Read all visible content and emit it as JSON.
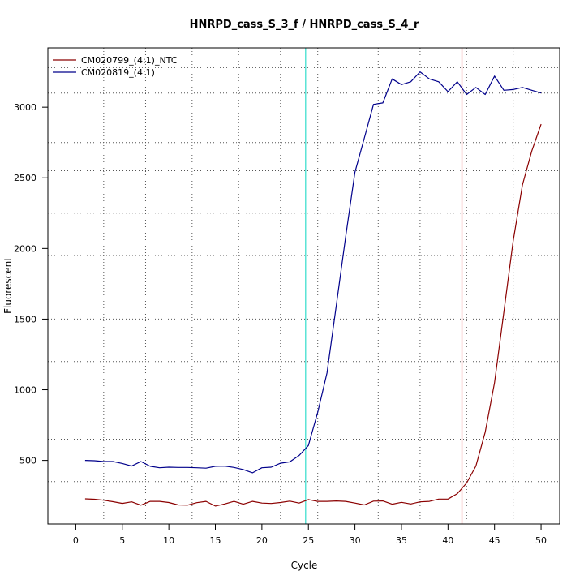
{
  "chart_data": {
    "type": "line",
    "title": "HNRPD_cass_S_3_f / HNRPD_cass_S_4_r",
    "xlabel": "Cycle",
    "ylabel": "Fluorescent",
    "xlim": [
      -3,
      52
    ],
    "ylim": [
      50,
      3420
    ],
    "x_ticks": [
      0,
      5,
      10,
      15,
      20,
      25,
      30,
      35,
      40,
      45,
      50
    ],
    "y_ticks": [
      500,
      1000,
      1500,
      2000,
      2500,
      3000
    ],
    "x_grid": [
      3,
      7.5,
      12.5,
      17.5,
      22,
      26,
      32.5,
      37,
      42,
      47
    ],
    "y_grid": [
      350,
      650,
      1200,
      1500,
      1950,
      2250,
      2550,
      2750,
      3100,
      3280
    ],
    "grid": true,
    "legend_position": "top-left",
    "threshold_lines": [
      {
        "x": 24.7,
        "color": "#40e0d0"
      },
      {
        "x": 41.5,
        "color": "#f08080"
      }
    ],
    "x": [
      1,
      2,
      3,
      4,
      5,
      6,
      7,
      8,
      9,
      10,
      11,
      12,
      13,
      14,
      15,
      16,
      17,
      18,
      19,
      20,
      21,
      22,
      23,
      24,
      25,
      26,
      27,
      28,
      29,
      30,
      31,
      32,
      33,
      34,
      35,
      36,
      37,
      38,
      39,
      40,
      41,
      42,
      43,
      44,
      45,
      46,
      47,
      48,
      49,
      50
    ],
    "series": [
      {
        "name": "CM020799_(4:1)_NTC",
        "color": "#8b0000",
        "values": [
          228,
          225,
          218,
          208,
          196,
          207,
          183,
          210,
          210,
          202,
          185,
          183,
          201,
          210,
          177,
          192,
          210,
          190,
          210,
          198,
          195,
          202,
          212,
          198,
          223,
          210,
          210,
          213,
          210,
          198,
          185,
          212,
          213,
          190,
          203,
          192,
          207,
          210,
          226,
          226,
          265,
          340,
          460,
          700,
          1050,
          1550,
          2050,
          2450,
          2690,
          2880
        ]
      },
      {
        "name": "CM020819_(4:1)",
        "color": "#00008b",
        "values": [
          500,
          498,
          492,
          492,
          478,
          460,
          492,
          458,
          448,
          452,
          450,
          450,
          448,
          445,
          458,
          460,
          450,
          435,
          412,
          448,
          452,
          480,
          490,
          535,
          605,
          840,
          1120,
          1600,
          2080,
          2540,
          2780,
          3020,
          3030,
          3200,
          3160,
          3180,
          3250,
          3200,
          3180,
          3110,
          3180,
          3090,
          3140,
          3090,
          3220,
          3120,
          3125,
          3140,
          3120,
          3100
        ]
      }
    ]
  }
}
